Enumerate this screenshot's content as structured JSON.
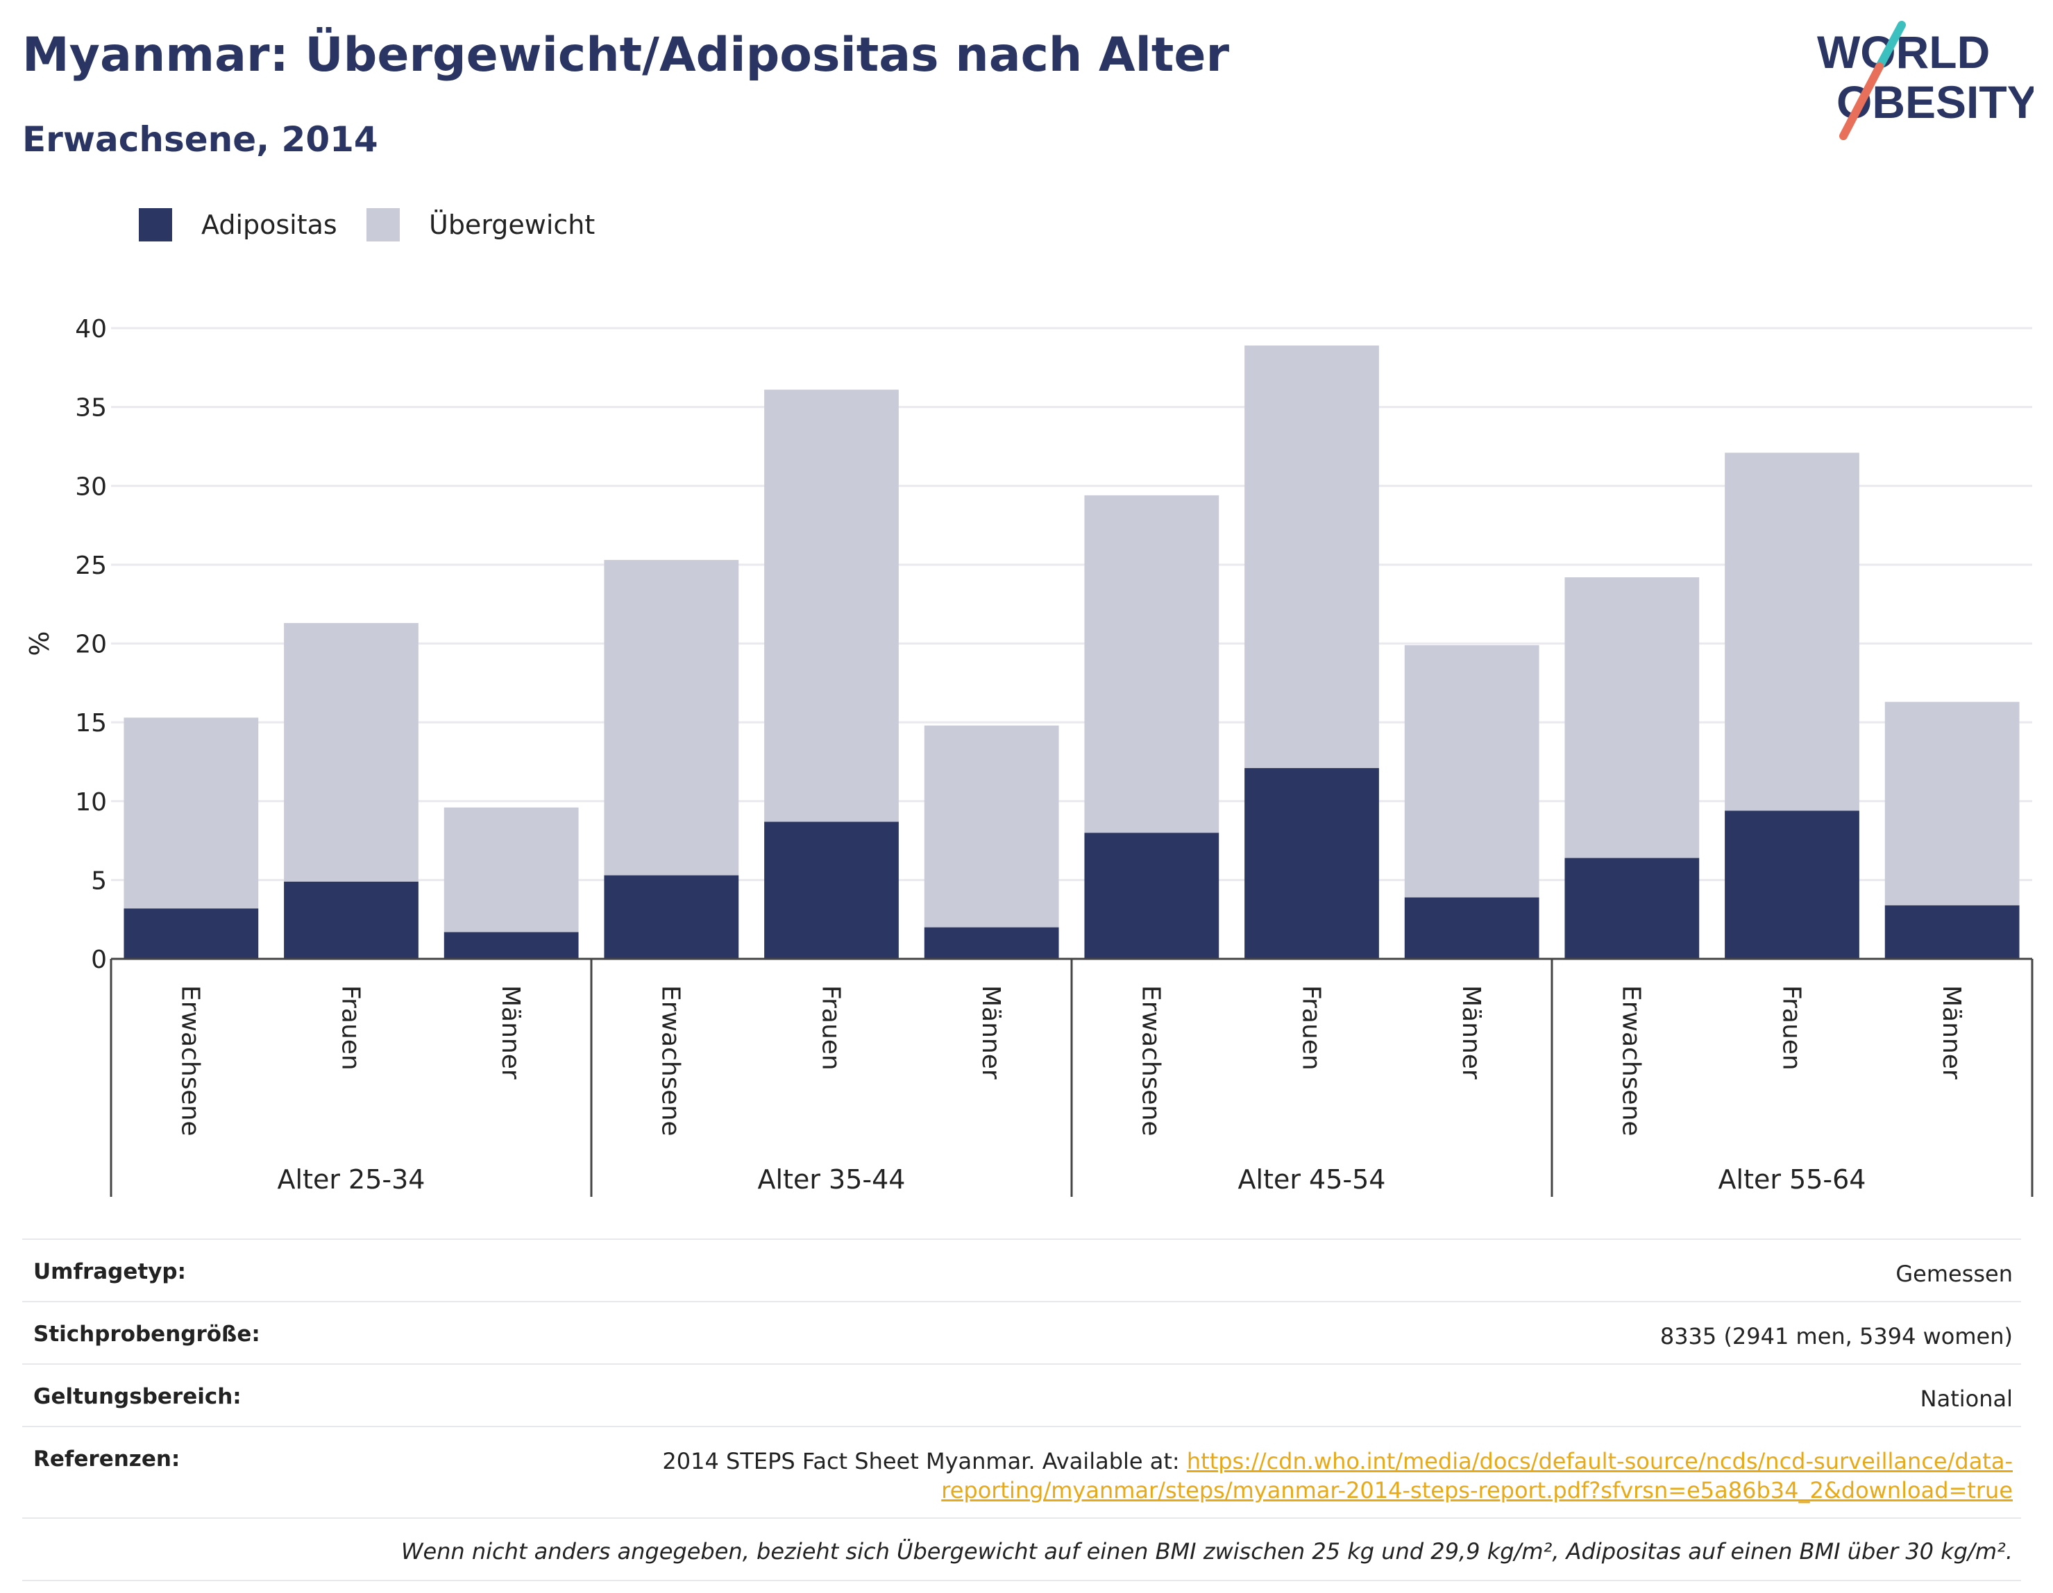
{
  "header": {
    "title": "Myanmar: Übergewicht/Adipositas nach Alter",
    "subtitle": "Erwachsene, 2014"
  },
  "logo": {
    "line1": "WORLD",
    "line2": "OBESITY",
    "colors": {
      "text": "#2a3563",
      "slash_top": "#3bbfbf",
      "slash_bottom": "#e8705a"
    }
  },
  "legend": [
    {
      "label": "Adipositas",
      "color": "#2b3663"
    },
    {
      "label": "Übergewicht",
      "color": "#c9ccd8"
    }
  ],
  "chart_data": {
    "type": "bar",
    "stacked": true,
    "ylabel": "%",
    "ylim": [
      0,
      40
    ],
    "yticks": [
      0,
      5,
      10,
      15,
      20,
      25,
      30,
      35,
      40
    ],
    "grid": true,
    "legend_position": "top-left",
    "groups": [
      "Alter 25-34",
      "Alter 35-44",
      "Alter 45-54",
      "Alter 55-64"
    ],
    "categories": [
      "Erwachsene",
      "Frauen",
      "Männer"
    ],
    "series": [
      {
        "name": "Adipositas",
        "color": "#2b3663",
        "values": [
          [
            3.2,
            4.9,
            1.7
          ],
          [
            5.3,
            8.7,
            2.0
          ],
          [
            8.0,
            12.1,
            3.9
          ],
          [
            6.4,
            9.4,
            3.4
          ]
        ]
      },
      {
        "name": "Übergewicht",
        "color": "#c9ccd8",
        "values": [
          [
            12.1,
            16.4,
            7.9
          ],
          [
            20.0,
            27.4,
            12.8
          ],
          [
            21.4,
            26.8,
            16.0
          ],
          [
            17.8,
            22.7,
            12.9
          ]
        ]
      }
    ]
  },
  "info": {
    "survey_label": "Umfragetyp:",
    "survey_value": "Gemessen",
    "sample_label": "Stichprobengröße:",
    "sample_value": "8335 (2941 men, 5394 women)",
    "scope_label": "Geltungsbereich:",
    "scope_value": "National",
    "ref_label": "Referenzen:",
    "ref_text": "2014 STEPS Fact Sheet Myanmar. Available at: ",
    "ref_link_line1": "https://cdn.who.int/media/docs/default-source/ncds/ncd-surveillance/data-",
    "ref_link_line2": "reporting/myanmar/steps/myanmar-2014-steps-report.pdf?sfvrsn=e5a86b34_2&download=true",
    "footnote": "Wenn nicht anders angegeben, bezieht sich Übergewicht auf einen BMI zwischen 25 kg und 29,9 kg/m², Adipositas auf einen BMI über 30 kg/m²."
  }
}
